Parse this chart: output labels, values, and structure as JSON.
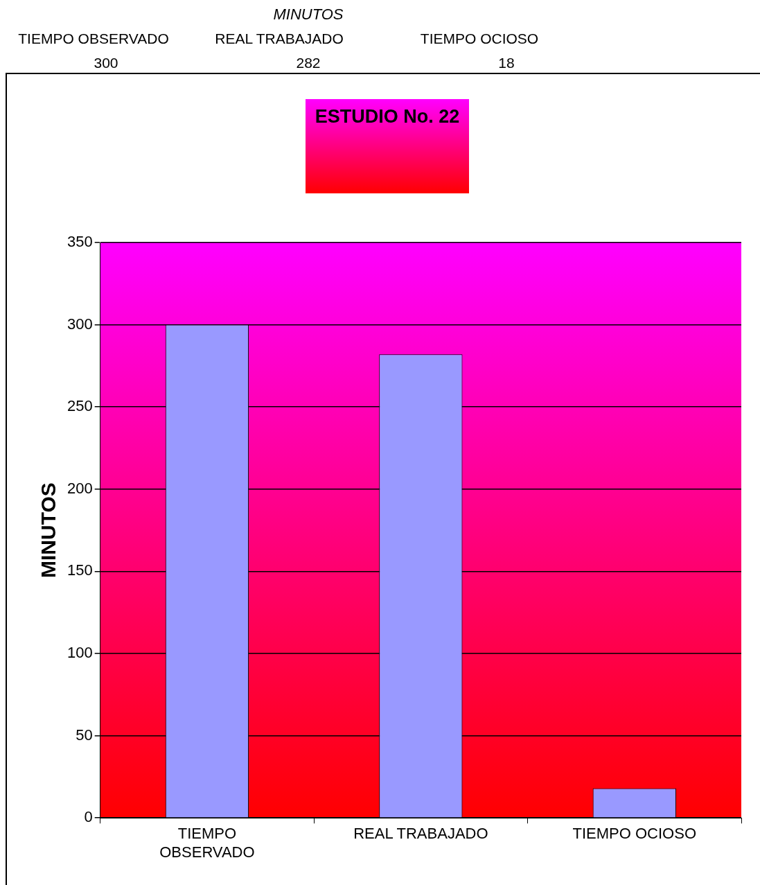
{
  "chart_data": {
    "type": "bar",
    "title": "ESTUDIO No. 22",
    "ylabel": "MINUTOS",
    "annotations": [
      "MINUTOS",
      "300",
      "282",
      "18"
    ],
    "categories": [
      "TIEMPO OBSERVADO",
      "REAL TRABAJADO",
      "TIEMPO OCIOSO"
    ],
    "values": [
      300,
      282,
      18
    ],
    "color": "#9999ff",
    "ylim": [
      0,
      350
    ],
    "yticks": [
      0,
      50,
      100,
      150,
      200,
      250,
      300,
      350
    ],
    "grid": "y"
  }
}
